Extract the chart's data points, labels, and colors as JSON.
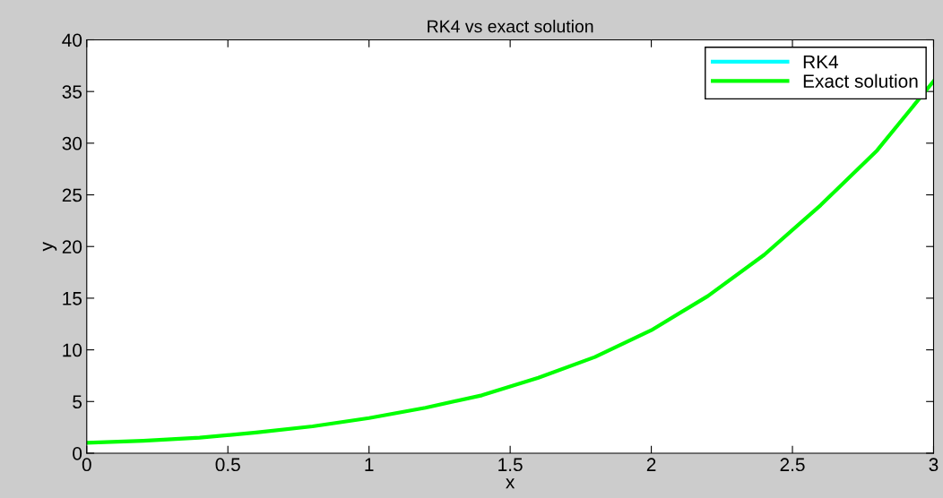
{
  "chart_data": {
    "type": "line",
    "title": "RK4 vs exact solution",
    "xlabel": "x",
    "ylabel": "y",
    "x": [
      0,
      0.2,
      0.4,
      0.6,
      0.8,
      1.0,
      1.2,
      1.4,
      1.6,
      1.8,
      2.0,
      2.2,
      2.4,
      2.6,
      2.8,
      3.0
    ],
    "series": [
      {
        "name": "RK4",
        "color": "#00ffff",
        "values": [
          null,
          null,
          null,
          null,
          null,
          null,
          null,
          null,
          null,
          null,
          null,
          null,
          null,
          null,
          null,
          null
        ]
      },
      {
        "name": "Exact solution",
        "color": "#00ff00",
        "values": [
          1,
          1.2,
          1.5,
          2.0,
          2.6,
          3.4,
          4.4,
          5.6,
          7.3,
          9.3,
          11.9,
          15.2,
          19.2,
          24.0,
          29.3,
          36.0
        ]
      }
    ],
    "xlim": [
      0,
      3
    ],
    "xticks": [
      0,
      0.5,
      1,
      1.5,
      2,
      2.5,
      3
    ],
    "ylim": [
      0,
      40
    ],
    "yticks": [
      0,
      5,
      10,
      15,
      20,
      25,
      30,
      35,
      40
    ],
    "grid": false,
    "legend": "top right",
    "marker": "none",
    "line_style": "solid"
  }
}
